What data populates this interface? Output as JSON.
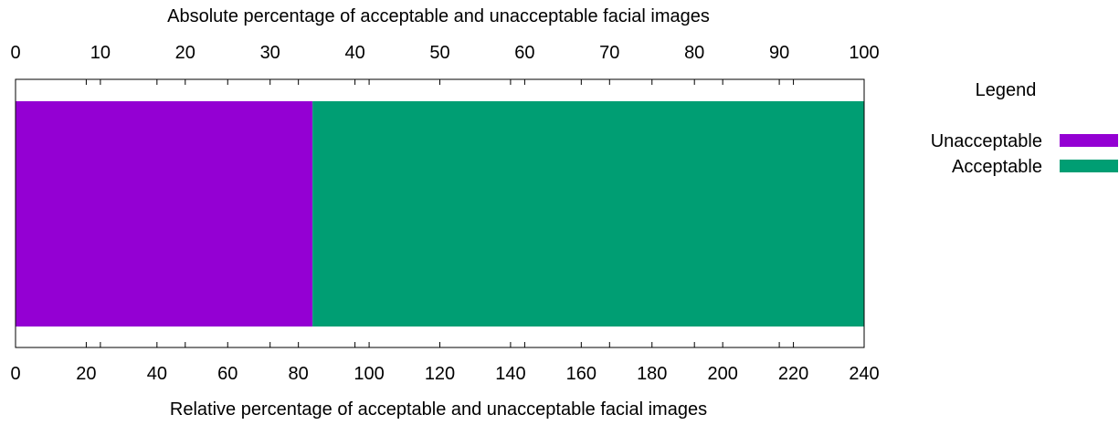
{
  "chart_data": {
    "type": "bar",
    "orientation": "horizontal",
    "stacked": true,
    "title": "",
    "top_axis": {
      "label": "Absolute percentage of acceptable and unacceptable facial images",
      "range": [
        0,
        100
      ],
      "ticks": [
        "0",
        "10",
        "20",
        "30",
        "40",
        "50",
        "60",
        "70",
        "80",
        "90",
        "100"
      ]
    },
    "bottom_axis": {
      "label": "Relative percentage of acceptable and unacceptable facial images",
      "range": [
        0,
        240
      ],
      "ticks": [
        "0",
        "20",
        "40",
        "60",
        "80",
        "100",
        "120",
        "140",
        "160",
        "180",
        "200",
        "220",
        "240"
      ]
    },
    "series": [
      {
        "name": "Unacceptable",
        "value": 35,
        "color": "#9400d3"
      },
      {
        "name": "Acceptable",
        "value": 65,
        "color": "#009e73"
      }
    ],
    "legend": {
      "title": "Legend",
      "placement": "right",
      "items": [
        "Unacceptable",
        "Acceptable"
      ]
    },
    "grid": false
  }
}
